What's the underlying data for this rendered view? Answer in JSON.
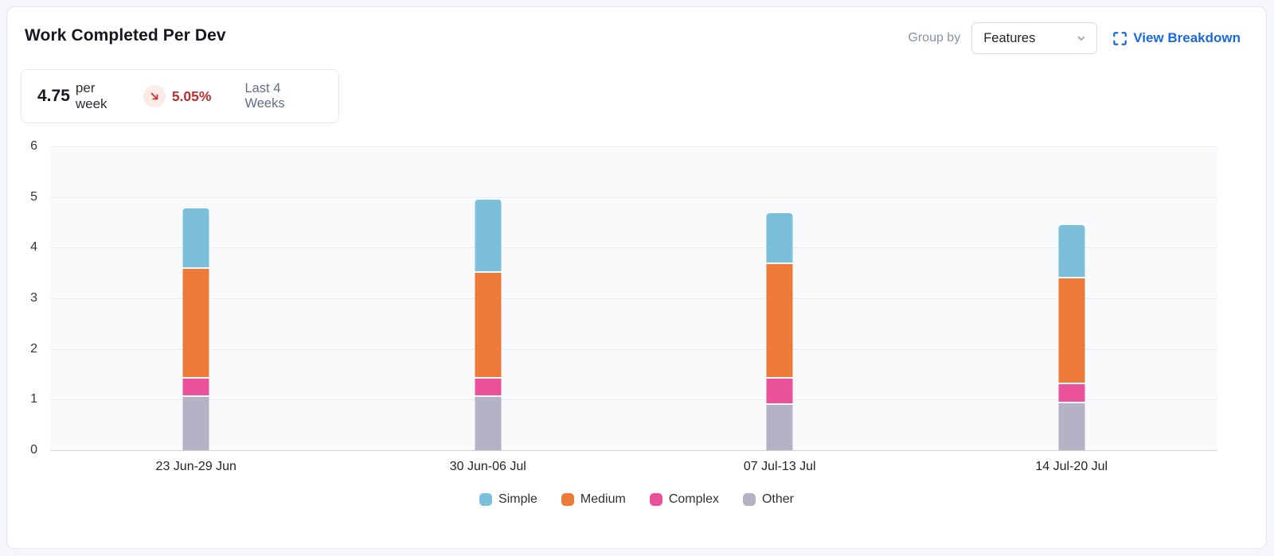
{
  "header": {
    "title": "Work Completed Per Dev",
    "group_by_label": "Group by",
    "group_by_value": "Features",
    "view_breakdown_label": "View Breakdown"
  },
  "stat": {
    "value": "4.75",
    "unit": "per week",
    "delta": "5.05%",
    "delta_direction": "down",
    "period": "Last 4 Weeks"
  },
  "chart_data": {
    "type": "bar",
    "stacked": true,
    "title": "Work Completed Per Dev",
    "categories": [
      "23 Jun-29 Jun",
      "30 Jun-06 Jul",
      "07 Jul-13 Jul",
      "14 Jul-20 Jul"
    ],
    "series": [
      {
        "name": "Simple",
        "color": "#7cbfda",
        "values": [
          1.19,
          1.44,
          1.01,
          1.05
        ]
      },
      {
        "name": "Medium",
        "color": "#ee7a38",
        "values": [
          2.17,
          2.1,
          2.25,
          2.1
        ]
      },
      {
        "name": "Complex",
        "color": "#ec519c",
        "values": [
          0.36,
          0.36,
          0.53,
          0.38
        ]
      },
      {
        "name": "Other",
        "color": "#b3b3c5",
        "values": [
          1.05,
          1.05,
          0.89,
          0.92
        ]
      }
    ],
    "stack_order_bottom_to_top": [
      "Other",
      "Complex",
      "Medium",
      "Simple"
    ],
    "totals": [
      4.77,
      4.95,
      4.68,
      4.45
    ],
    "xlabel": "",
    "ylabel": "",
    "ylim": [
      0,
      6
    ],
    "yticks": [
      0,
      1,
      2,
      3,
      4,
      5,
      6
    ],
    "grid": true,
    "legend_position": "bottom"
  },
  "colors": {
    "accent_blue": "#1b69e1",
    "delta_red": "#c22d2d",
    "delta_badge_bg": "#fcebe8",
    "plot_bg": "#f8fafc",
    "gridline": "#e9ecf2"
  }
}
